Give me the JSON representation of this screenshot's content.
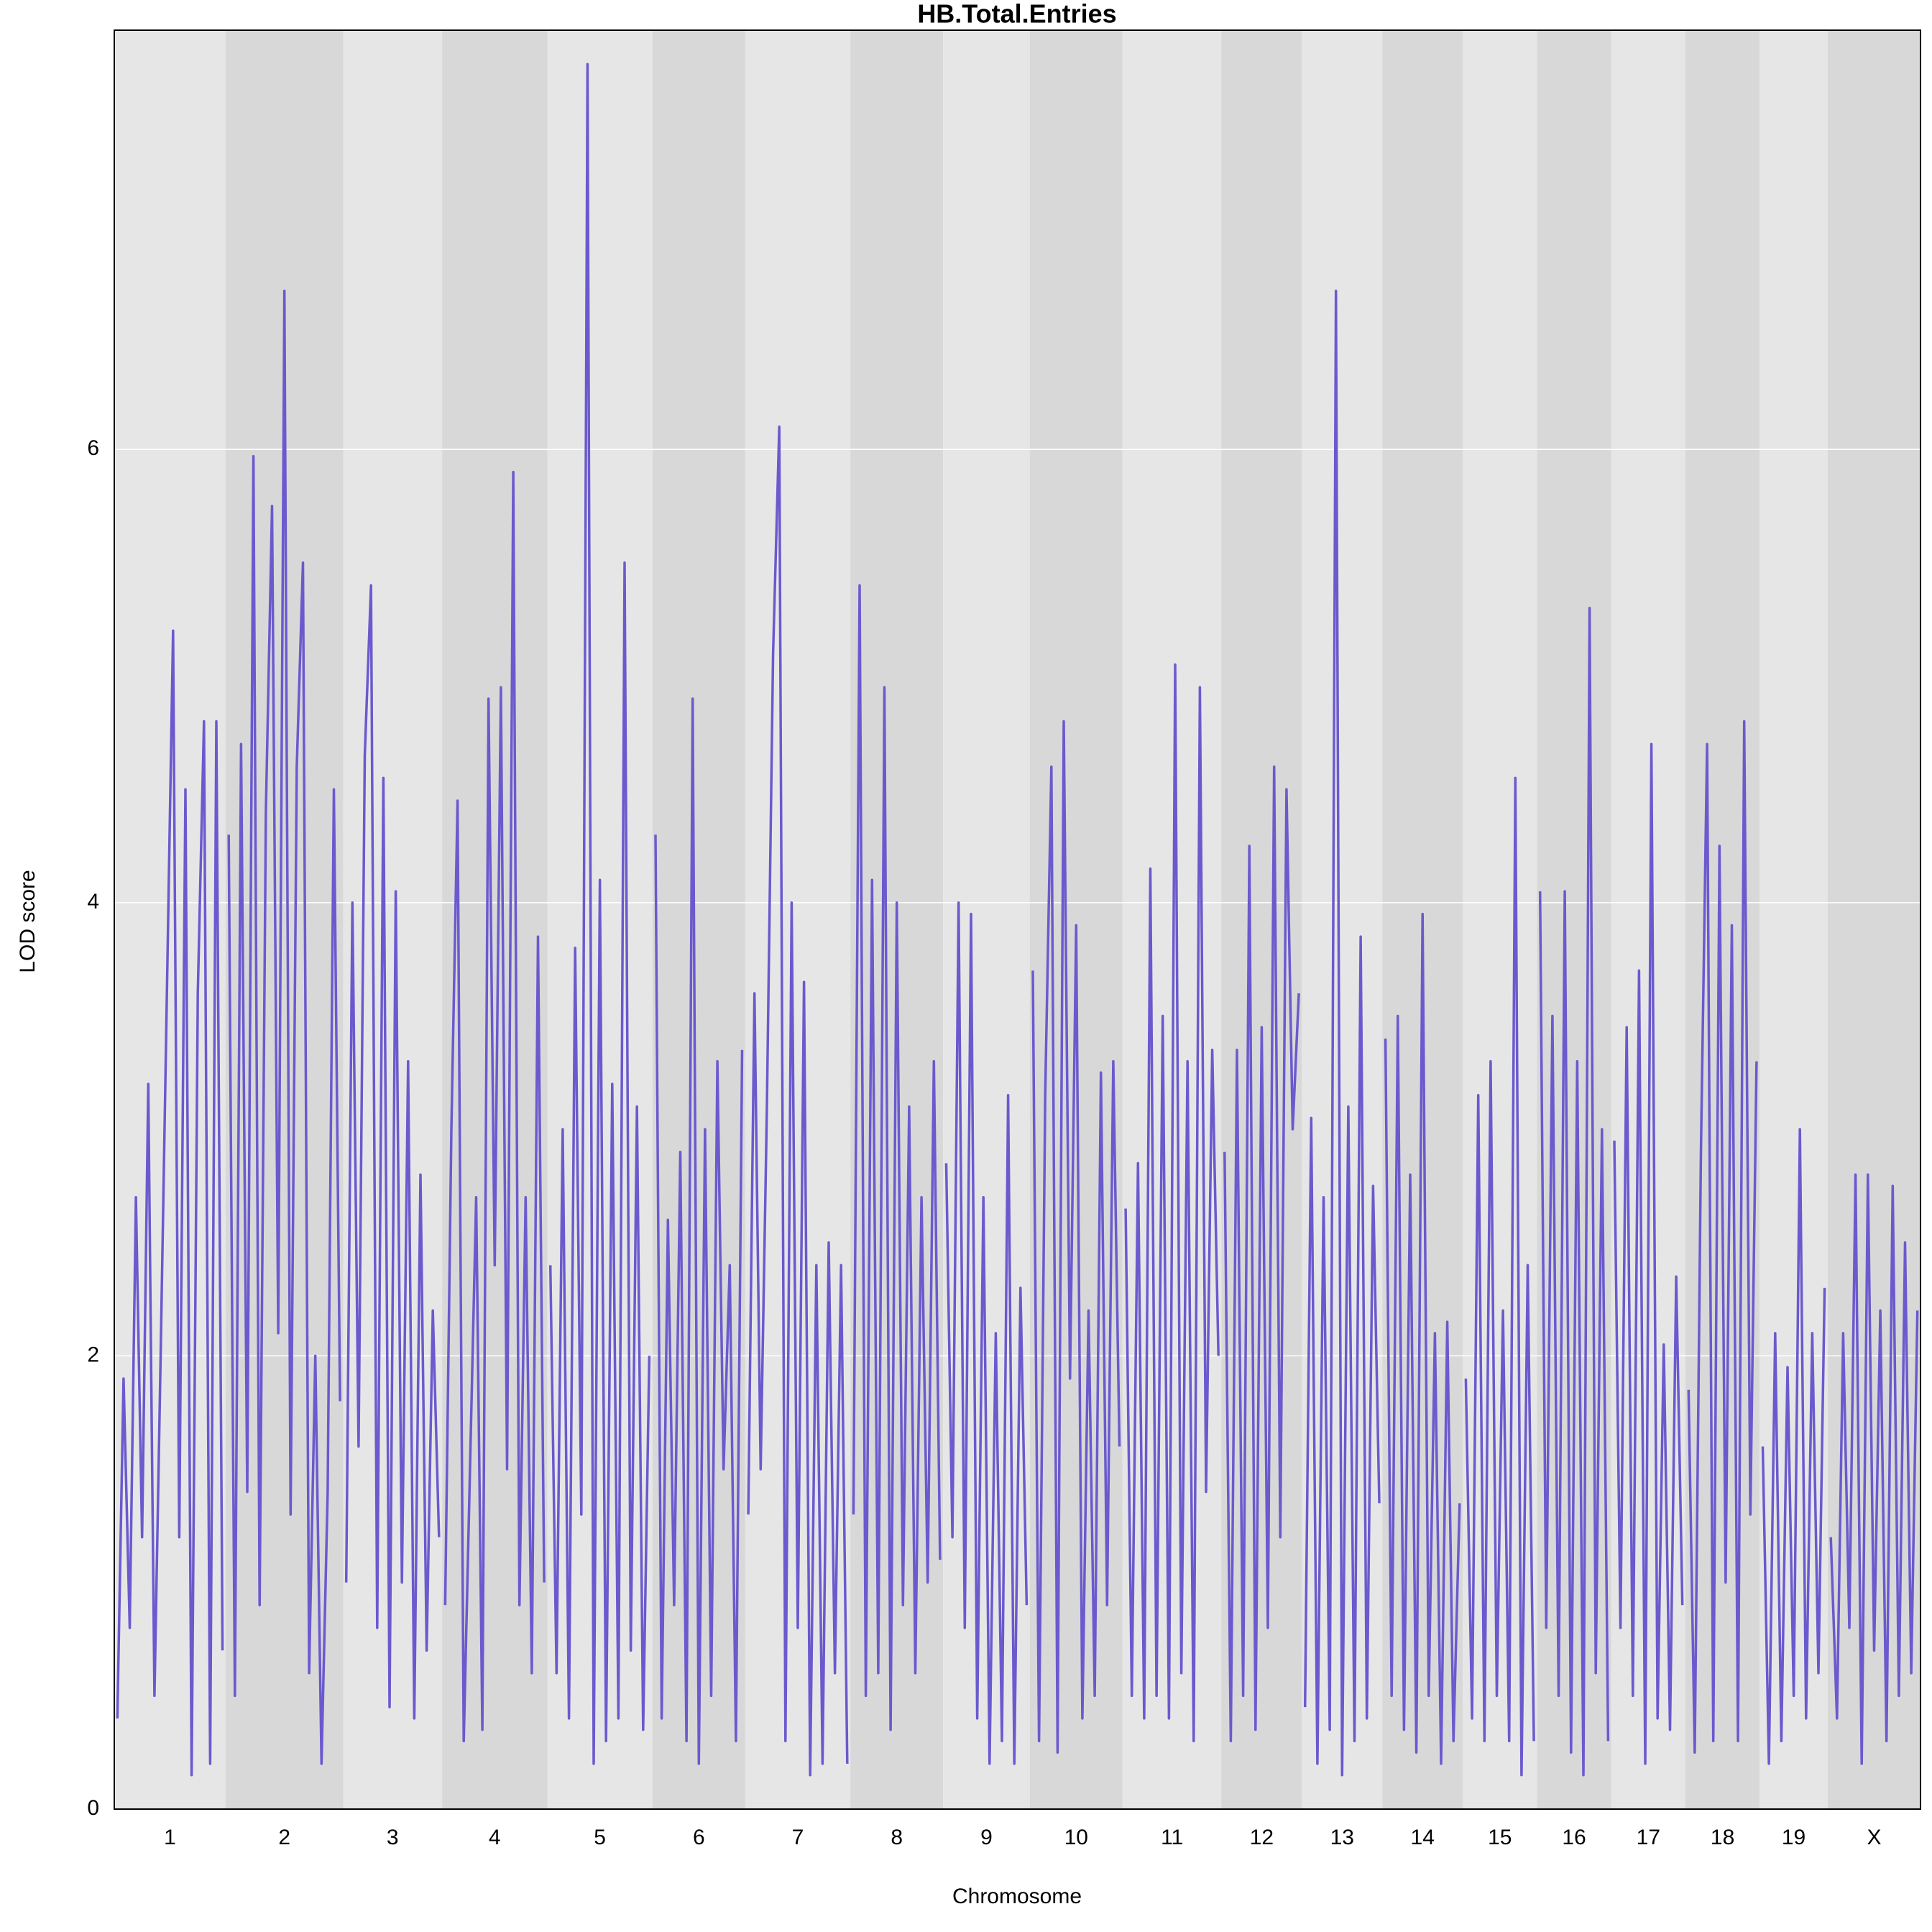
{
  "chart_data": {
    "type": "line",
    "title": "HB.Total.Entries",
    "xlabel": "Chromosome",
    "ylabel": "LOD score",
    "color": "#6a5acd",
    "ylim": [
      0,
      7.85
    ],
    "yticks": [
      0,
      2,
      4,
      6
    ],
    "grid": true,
    "categories": [
      "1",
      "2",
      "3",
      "4",
      "5",
      "6",
      "7",
      "8",
      "9",
      "10",
      "11",
      "12",
      "13",
      "14",
      "15",
      "16",
      "17",
      "18",
      "19",
      "X"
    ],
    "values": [
      [
        0.4,
        1.9,
        0.8,
        2.7,
        1.2,
        3.2,
        0.5,
        2.0,
        3.6,
        5.2,
        1.2,
        4.5,
        0.15,
        3.6,
        4.8,
        0.2,
        4.8,
        0.7
      ],
      [
        4.3,
        0.5,
        4.7,
        1.4,
        5.97,
        0.9,
        4.4,
        5.75,
        2.1,
        6.7,
        1.3,
        4.6,
        5.5,
        0.6,
        2.0,
        0.2,
        1.4,
        4.5,
        1.8
      ],
      [
        1.0,
        4.0,
        1.6,
        4.65,
        5.4,
        0.8,
        4.55,
        0.45,
        4.05,
        1.0,
        3.3,
        0.4,
        2.8,
        0.7,
        2.2,
        1.2
      ],
      [
        0.9,
        3.0,
        4.45,
        0.3,
        1.5,
        2.7,
        0.35,
        4.9,
        2.4,
        4.95,
        1.5,
        5.9,
        0.9,
        2.7,
        0.6,
        3.85,
        1.0
      ],
      [
        2.4,
        0.6,
        3.0,
        0.4,
        3.8,
        1.3,
        7.7,
        0.2,
        4.1,
        0.3,
        3.2,
        0.4,
        5.5,
        0.7,
        3.1,
        0.35,
        2.0
      ],
      [
        4.3,
        0.4,
        2.6,
        0.9,
        2.9,
        0.3,
        4.9,
        0.2,
        3.0,
        0.5,
        3.3,
        1.5,
        2.4,
        0.3,
        3.35
      ],
      [
        1.3,
        3.6,
        1.5,
        3.1,
        5.1,
        6.1,
        0.3,
        4.0,
        0.8,
        3.65,
        0.15,
        2.4,
        0.2,
        2.5,
        0.6,
        2.4,
        0.2
      ],
      [
        1.3,
        5.4,
        0.5,
        4.1,
        0.6,
        4.95,
        0.35,
        4.0,
        0.9,
        3.1,
        0.6,
        2.7,
        1.0,
        3.3,
        1.1
      ],
      [
        2.85,
        1.2,
        4.0,
        0.8,
        3.95,
        0.4,
        2.7,
        0.2,
        2.1,
        0.3,
        3.15,
        0.2,
        2.3,
        0.9
      ],
      [
        3.7,
        0.3,
        3.15,
        4.6,
        0.25,
        4.8,
        1.9,
        3.9,
        0.4,
        2.2,
        0.5,
        3.25,
        0.9,
        3.3,
        1.6
      ],
      [
        2.65,
        0.5,
        2.85,
        0.4,
        4.15,
        0.5,
        3.5,
        0.4,
        5.05,
        0.6,
        3.3,
        0.3,
        4.95,
        1.4,
        3.35,
        2.0
      ],
      [
        2.9,
        0.3,
        3.35,
        0.5,
        4.25,
        0.35,
        3.45,
        0.8,
        4.6,
        1.2,
        4.5,
        3.0,
        3.6
      ],
      [
        0.45,
        3.05,
        0.2,
        2.7,
        0.35,
        6.7,
        0.15,
        3.1,
        0.3,
        3.85,
        0.4,
        2.75,
        1.35
      ],
      [
        3.4,
        0.5,
        3.5,
        0.35,
        2.8,
        0.25,
        3.95,
        0.5,
        2.1,
        0.2,
        2.15,
        0.3,
        1.35
      ],
      [
        1.9,
        0.4,
        3.15,
        0.3,
        3.3,
        0.5,
        2.2,
        0.3,
        4.55,
        0.15,
        2.4,
        0.3
      ],
      [
        4.05,
        0.8,
        3.5,
        0.5,
        4.05,
        0.25,
        3.3,
        0.15,
        5.3,
        0.6,
        3.0,
        0.3
      ],
      [
        2.95,
        0.8,
        3.45,
        0.5,
        3.7,
        0.2,
        4.7,
        0.4,
        2.05,
        0.35,
        2.35,
        0.9
      ],
      [
        1.85,
        0.25,
        2.9,
        4.7,
        0.3,
        4.25,
        1.0,
        3.9,
        0.3,
        4.8,
        1.3,
        3.3
      ],
      [
        1.6,
        0.2,
        2.1,
        0.3,
        1.95,
        0.5,
        3.0,
        0.4,
        2.1,
        0.6,
        2.3
      ],
      [
        1.2,
        0.4,
        2.1,
        0.8,
        2.8,
        0.2,
        2.8,
        0.7,
        2.2,
        0.3,
        2.75,
        0.5,
        2.5,
        0.6,
        2.2
      ]
    ]
  }
}
